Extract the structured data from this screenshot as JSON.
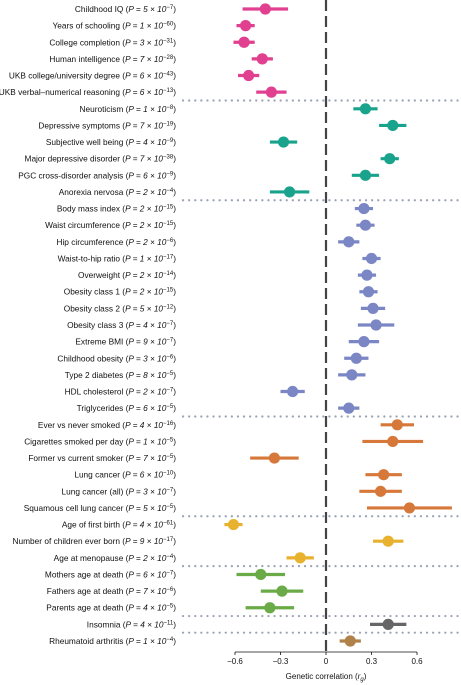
{
  "chart_data": {
    "type": "scatter",
    "title": "",
    "xlabel": "Genetic correlation (rg)",
    "xlim": [
      -0.92,
      0.92
    ],
    "xticks": [
      -0.6,
      -0.3,
      0,
      0.3,
      0.6
    ],
    "xtick_labels": [
      "−0.6",
      "−0.3",
      "0",
      "0.3",
      "0.6"
    ],
    "zero_line": "dashed",
    "group_separators": "dotted",
    "colors": {
      "cognition": "#e0408f",
      "psychiatric": "#1aa38c",
      "anthropometric": "#7b86c4",
      "smoking": "#d6783a",
      "reproductive": "#e8b22e",
      "longevity": "#6aab48",
      "insomnia": "#666666",
      "rheumatoid": "#b0824a"
    },
    "groups": [
      {
        "color_key": "cognition",
        "rows": [
          {
            "label": "Childhood IQ",
            "p": "P = 5 × 10",
            "exp": "−7",
            "rg": -0.4,
            "lo": -0.55,
            "hi": -0.25
          },
          {
            "label": "Years of schooling",
            "p": "P = 1 × 10",
            "exp": "−60",
            "rg": -0.53,
            "lo": -0.59,
            "hi": -0.47
          },
          {
            "label": "College completion",
            "p": "P = 3 × 10",
            "exp": "−31",
            "rg": -0.54,
            "lo": -0.61,
            "hi": -0.47
          },
          {
            "label": "Human intelligence",
            "p": "P = 7 × 10",
            "exp": "−28",
            "rg": -0.42,
            "lo": -0.49,
            "hi": -0.35
          },
          {
            "label": "UKB college/university degree",
            "p": "P = 6 × 10",
            "exp": "−43",
            "rg": -0.51,
            "lo": -0.58,
            "hi": -0.44
          },
          {
            "label": "UKB verbal–numerical reasoning",
            "p": "P = 6 × 10",
            "exp": "−13",
            "rg": -0.36,
            "lo": -0.46,
            "hi": -0.26
          }
        ]
      },
      {
        "color_key": "psychiatric",
        "rows": [
          {
            "label": "Neuroticism",
            "p": "P = 1 × 10",
            "exp": "−8",
            "rg": 0.26,
            "lo": 0.18,
            "hi": 0.34
          },
          {
            "label": "Depressive symptoms",
            "p": "P = 7 × 10",
            "exp": "−19",
            "rg": 0.44,
            "lo": 0.35,
            "hi": 0.53
          },
          {
            "label": "Subjective well being",
            "p": "P = 4 × 10",
            "exp": "−9",
            "rg": -0.28,
            "lo": -0.37,
            "hi": -0.19
          },
          {
            "label": "Major depressive disorder",
            "p": "P = 7 × 10",
            "exp": "−38",
            "rg": 0.42,
            "lo": 0.36,
            "hi": 0.48
          },
          {
            "label": "PGC cross-disorder analysis",
            "p": "P = 6 × 10",
            "exp": "−9",
            "rg": 0.26,
            "lo": 0.17,
            "hi": 0.35
          },
          {
            "label": "Anorexia nervosa",
            "p": "P = 2 × 10",
            "exp": "−4",
            "rg": -0.24,
            "lo": -0.37,
            "hi": -0.11
          }
        ]
      },
      {
        "color_key": "anthropometric",
        "rows": [
          {
            "label": "Body mass index",
            "p": "P = 2 × 10",
            "exp": "−15",
            "rg": 0.25,
            "lo": 0.19,
            "hi": 0.31
          },
          {
            "label": "Waist circumference",
            "p": "P = 2 × 10",
            "exp": "−15",
            "rg": 0.26,
            "lo": 0.2,
            "hi": 0.32
          },
          {
            "label": "Hip circumference",
            "p": "P = 2 × 10",
            "exp": "−6",
            "rg": 0.15,
            "lo": 0.08,
            "hi": 0.22
          },
          {
            "label": "Waist-to-hip ratio",
            "p": "P = 1 × 10",
            "exp": "−17",
            "rg": 0.3,
            "lo": 0.24,
            "hi": 0.36
          },
          {
            "label": "Overweight",
            "p": "P = 2 × 10",
            "exp": "−14",
            "rg": 0.27,
            "lo": 0.21,
            "hi": 0.33
          },
          {
            "label": "Obesity class 1",
            "p": "P = 2 × 10",
            "exp": "−15",
            "rg": 0.28,
            "lo": 0.22,
            "hi": 0.34
          },
          {
            "label": "Obesity class 2",
            "p": "P = 5 × 10",
            "exp": "−12",
            "rg": 0.31,
            "lo": 0.23,
            "hi": 0.39
          },
          {
            "label": "Obesity class 3",
            "p": "P = 4 × 10",
            "exp": "−7",
            "rg": 0.33,
            "lo": 0.21,
            "hi": 0.45
          },
          {
            "label": "Extreme BMI",
            "p": "P = 9 × 10",
            "exp": "−7",
            "rg": 0.25,
            "lo": 0.15,
            "hi": 0.35
          },
          {
            "label": "Childhood obesity",
            "p": "P = 3 × 10",
            "exp": "−6",
            "rg": 0.2,
            "lo": 0.12,
            "hi": 0.28
          },
          {
            "label": "Type 2 diabetes",
            "p": "P = 8 × 10",
            "exp": "−5",
            "rg": 0.17,
            "lo": 0.08,
            "hi": 0.26
          },
          {
            "label": "HDL cholesterol",
            "p": "P = 2 × 10",
            "exp": "−7",
            "rg": -0.22,
            "lo": -0.3,
            "hi": -0.14
          },
          {
            "label": "Triglycerides",
            "p": "P = 6 × 10",
            "exp": "−5",
            "rg": 0.15,
            "lo": 0.08,
            "hi": 0.22
          }
        ]
      },
      {
        "color_key": "smoking",
        "rows": [
          {
            "label": "Ever vs never smoked",
            "p": "P = 4 × 10",
            "exp": "−16",
            "rg": 0.47,
            "lo": 0.36,
            "hi": 0.58
          },
          {
            "label": "Cigarettes smoked per day",
            "p": "P = 1 × 10",
            "exp": "−5",
            "rg": 0.44,
            "lo": 0.24,
            "hi": 0.64
          },
          {
            "label": "Former vs current smoker",
            "p": "P = 7 × 10",
            "exp": "−5",
            "rg": -0.34,
            "lo": -0.5,
            "hi": -0.18
          },
          {
            "label": "Lung cancer",
            "p": "P = 6 × 10",
            "exp": "−10",
            "rg": 0.38,
            "lo": 0.26,
            "hi": 0.5
          },
          {
            "label": "Lung cancer (all)",
            "p": "P = 3 × 10",
            "exp": "−7",
            "rg": 0.36,
            "lo": 0.22,
            "hi": 0.5
          },
          {
            "label": "Squamous cell lung cancer",
            "p": "P = 5 × 10",
            "exp": "−5",
            "rg": 0.55,
            "lo": 0.27,
            "hi": 0.83
          }
        ]
      },
      {
        "color_key": "reproductive",
        "rows": [
          {
            "label": "Age of first birth",
            "p": "P = 4 × 10",
            "exp": "−61",
            "rg": -0.61,
            "lo": -0.67,
            "hi": -0.55
          },
          {
            "label": "Number of children ever born",
            "p": "P = 9 × 10",
            "exp": "−17",
            "rg": 0.41,
            "lo": 0.31,
            "hi": 0.51
          },
          {
            "label": "Age at menopause",
            "p": "P = 2 × 10",
            "exp": "−4",
            "rg": -0.17,
            "lo": -0.26,
            "hi": -0.08
          }
        ]
      },
      {
        "color_key": "longevity",
        "rows": [
          {
            "label": "Mothers age at death",
            "p": "P = 6 × 10",
            "exp": "−7",
            "rg": -0.43,
            "lo": -0.59,
            "hi": -0.27
          },
          {
            "label": "Fathers age at death",
            "p": "P = 7 × 10",
            "exp": "−6",
            "rg": -0.29,
            "lo": -0.43,
            "hi": -0.15
          },
          {
            "label": "Parents age at death",
            "p": "P = 4 × 10",
            "exp": "−5",
            "rg": -0.37,
            "lo": -0.53,
            "hi": -0.21
          }
        ]
      },
      {
        "color_key": "insomnia",
        "rows": [
          {
            "label": "Insomnia",
            "p": "P = 4 × 10",
            "exp": "−11",
            "rg": 0.41,
            "lo": 0.29,
            "hi": 0.53
          }
        ]
      },
      {
        "color_key": "rheumatoid",
        "rows": [
          {
            "label": "Rheumatoid arthritis",
            "p": "P = 1 × 10",
            "exp": "−4",
            "rg": 0.16,
            "lo": 0.09,
            "hi": 0.23
          }
        ]
      }
    ]
  }
}
